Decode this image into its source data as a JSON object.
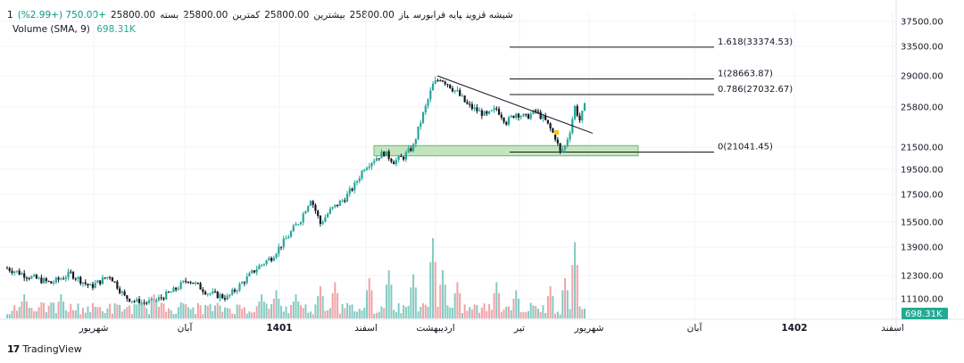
{
  "header": {
    "interval": "1",
    "symbol": "شیشه قزوین",
    "exchange": "پایه فرابورس",
    "open_label": "باز",
    "open_value": "25800.00",
    "high_label": "بیشترین",
    "high_value": "25800.00",
    "low_label": "کمترین",
    "low_value": "25800.00",
    "close_label": "بسته",
    "close_value": "25800.00",
    "change": "+750.00 (+2.99%)"
  },
  "volume": {
    "label": "Volume",
    "params": "(SMA, 9)",
    "value": "698.31K"
  },
  "brand": {
    "logo": "17",
    "name": "TradingView"
  },
  "colors": {
    "up": "#26a69a",
    "down": "#131722",
    "vol_up": "#84cbc2",
    "vol_down": "#f2a2a8",
    "zone": "#b9dfb0",
    "grid": "#f0f3fa"
  },
  "chart_data": {
    "type": "candlestick",
    "y_scale": "log",
    "y_ticks": [
      37500.0,
      33500.0,
      29000.0,
      25800.0,
      21500.0,
      19500.0,
      17500.0,
      15500.0,
      13900.0,
      12300.0,
      11100.0
    ],
    "y_tick_labels": [
      "37500.00",
      "33500.00",
      "29000.00",
      "25800.00",
      "21500.00",
      "19500.00",
      "17500.00",
      "15500.00",
      "13900.00",
      "12300.00",
      "11100.00"
    ],
    "x_tick_labels": [
      "شهریور",
      "آبان",
      "1401",
      "اسفند",
      "اردیبهشت",
      "تیر",
      "شهریور",
      "آبان",
      "1402",
      "اسفند"
    ],
    "last_volume_label": "698.31K",
    "fib_levels": [
      {
        "label": "1.618(33374.53)",
        "value": 33374.53
      },
      {
        "label": "1(28663.87)",
        "value": 28663.87
      },
      {
        "label": "0.786(27032.67)",
        "value": 27032.67
      },
      {
        "label": "0(21041.45)",
        "value": 21041.45
      }
    ],
    "support_zone": [
      20700,
      21650
    ],
    "trendline": [
      {
        "date": "1401-02",
        "value": 29000
      },
      {
        "date": "1401-06",
        "value": 22900
      }
    ],
    "anchors": [
      [
        0,
        12700
      ],
      [
        10,
        12200
      ],
      [
        18,
        11900
      ],
      [
        26,
        12400
      ],
      [
        34,
        11700
      ],
      [
        42,
        12300
      ],
      [
        48,
        11200
      ],
      [
        54,
        10900
      ],
      [
        60,
        10950
      ],
      [
        68,
        11500
      ],
      [
        74,
        12100
      ],
      [
        82,
        11400
      ],
      [
        90,
        11150
      ],
      [
        96,
        11900
      ],
      [
        102,
        12700
      ],
      [
        108,
        13300
      ],
      [
        114,
        14400
      ],
      [
        120,
        15700
      ],
      [
        124,
        17200
      ],
      [
        128,
        15400
      ],
      [
        132,
        16300
      ],
      [
        138,
        17200
      ],
      [
        142,
        18200
      ],
      [
        146,
        19700
      ],
      [
        150,
        20400
      ],
      [
        154,
        21000
      ],
      [
        158,
        20200
      ],
      [
        162,
        20600
      ],
      [
        166,
        21600
      ],
      [
        170,
        25000
      ],
      [
        174,
        28000
      ],
      [
        177,
        28800
      ],
      [
        180,
        28200
      ],
      [
        184,
        27200
      ],
      [
        188,
        26000
      ],
      [
        192,
        25400
      ],
      [
        196,
        24800
      ],
      [
        200,
        25600
      ],
      [
        204,
        24100
      ],
      [
        208,
        25100
      ],
      [
        212,
        24600
      ],
      [
        216,
        25300
      ],
      [
        220,
        24200
      ],
      [
        224,
        22500
      ],
      [
        226,
        21000
      ],
      [
        228,
        21600
      ],
      [
        230,
        23200
      ],
      [
        232,
        25800
      ],
      [
        234,
        24300
      ],
      [
        236,
        25800
      ]
    ],
    "volume_series": [
      {
        "i": 7,
        "v": 0.3
      },
      {
        "i": 14,
        "v": 0.2
      },
      {
        "i": 22,
        "v": 0.3
      },
      {
        "i": 60,
        "v": 0.3
      },
      {
        "i": 71,
        "v": 0.2
      },
      {
        "i": 104,
        "v": 0.3
      },
      {
        "i": 110,
        "v": 0.35
      },
      {
        "i": 118,
        "v": 0.3
      },
      {
        "i": 128,
        "v": 0.4
      },
      {
        "i": 134,
        "v": 0.45
      },
      {
        "i": 148,
        "v": 0.5
      },
      {
        "i": 156,
        "v": 0.6
      },
      {
        "i": 166,
        "v": 0.55
      },
      {
        "i": 174,
        "v": 1.0
      },
      {
        "i": 178,
        "v": 0.6
      },
      {
        "i": 184,
        "v": 0.45
      },
      {
        "i": 200,
        "v": 0.45
      },
      {
        "i": 208,
        "v": 0.35
      },
      {
        "i": 222,
        "v": 0.4
      },
      {
        "i": 228,
        "v": 0.5
      },
      {
        "i": 232,
        "v": 0.95
      },
      {
        "i": 236,
        "v": 0.12
      }
    ]
  }
}
